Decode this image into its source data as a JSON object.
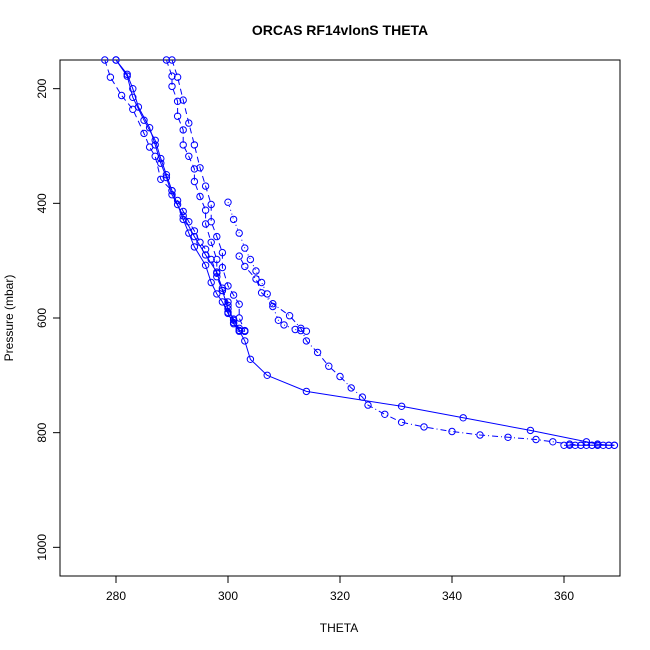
{
  "chart_data": {
    "type": "line",
    "title": "ORCAS RF14vlonS THETA",
    "xlabel": "THETA",
    "ylabel": "Pressure (mbar)",
    "xlim": [
      270,
      370
    ],
    "ylim": [
      1050,
      150
    ],
    "y_reversed": true,
    "grid": false,
    "legend": "none",
    "marker": "open-circle",
    "color": "#0000FF",
    "xticks": [
      280,
      300,
      320,
      340,
      360
    ],
    "yticks": [
      200,
      400,
      600,
      800,
      1000
    ],
    "series": [
      {
        "line_style": "dashed",
        "points": [
          [
            278,
            150
          ],
          [
            279,
            180
          ],
          [
            281,
            212
          ],
          [
            283,
            236
          ],
          [
            285,
            278
          ],
          [
            286,
            302
          ],
          [
            287,
            318
          ],
          [
            288,
            358
          ],
          [
            290,
            378
          ],
          [
            291,
            395
          ],
          [
            292,
            414
          ],
          [
            293,
            432
          ],
          [
            294,
            448
          ],
          [
            295,
            468
          ],
          [
            296,
            480
          ],
          [
            297,
            498
          ],
          [
            298,
            522
          ],
          [
            299,
            548
          ],
          [
            300,
            578
          ],
          [
            301,
            608
          ],
          [
            302,
            622
          ],
          [
            303,
            623
          ]
        ]
      },
      {
        "line_style": "solid",
        "points": [
          [
            280,
            150
          ],
          [
            282,
            175
          ],
          [
            283,
            200
          ],
          [
            284,
            232
          ],
          [
            286,
            268
          ],
          [
            287,
            298
          ],
          [
            288,
            330
          ],
          [
            289,
            355
          ],
          [
            290,
            385
          ],
          [
            292,
            422
          ],
          [
            294,
            458
          ],
          [
            296,
            490
          ],
          [
            298,
            520
          ],
          [
            299,
            552
          ],
          [
            300,
            584
          ],
          [
            301,
            602
          ],
          [
            302,
            622
          ],
          [
            303,
            623
          ]
        ]
      },
      {
        "line_style": "solid",
        "points": [
          [
            280,
            150
          ],
          [
            282,
            178
          ],
          [
            283,
            215
          ],
          [
            285,
            255
          ],
          [
            287,
            290
          ],
          [
            288,
            322
          ],
          [
            289,
            350
          ],
          [
            290,
            378
          ],
          [
            291,
            402
          ],
          [
            292,
            428
          ],
          [
            293,
            452
          ],
          [
            294,
            476
          ],
          [
            296,
            508
          ],
          [
            297,
            538
          ],
          [
            298,
            558
          ],
          [
            299,
            572
          ],
          [
            300,
            592
          ],
          [
            301,
            610
          ],
          [
            302,
            622
          ],
          [
            303,
            623
          ]
        ]
      },
      {
        "line_style": "dashed",
        "points": [
          [
            289,
            150
          ],
          [
            290,
            178
          ],
          [
            290,
            196
          ],
          [
            291,
            222
          ],
          [
            291,
            248
          ],
          [
            292,
            272
          ],
          [
            292,
            298
          ],
          [
            293,
            318
          ],
          [
            294,
            340
          ],
          [
            294,
            362
          ],
          [
            295,
            388
          ],
          [
            296,
            412
          ],
          [
            296,
            436
          ],
          [
            297,
            468
          ],
          [
            298,
            498
          ],
          [
            298,
            528
          ],
          [
            299,
            552
          ],
          [
            300,
            572
          ],
          [
            300,
            590
          ],
          [
            301,
            604
          ],
          [
            302,
            618
          ],
          [
            302,
            623
          ]
        ]
      },
      {
        "line_style": "dashed",
        "points": [
          [
            290,
            150
          ],
          [
            291,
            180
          ],
          [
            292,
            220
          ],
          [
            293,
            260
          ],
          [
            294,
            298
          ],
          [
            295,
            338
          ],
          [
            296,
            370
          ],
          [
            297,
            402
          ],
          [
            297,
            432
          ],
          [
            298,
            458
          ],
          [
            299,
            486
          ],
          [
            299,
            512
          ],
          [
            300,
            544
          ],
          [
            301,
            560
          ],
          [
            302,
            576
          ],
          [
            302,
            600
          ],
          [
            303,
            622
          ]
        ]
      },
      {
        "line_style": "dotted",
        "points": [
          [
            300,
            398
          ],
          [
            301,
            428
          ],
          [
            302,
            452
          ],
          [
            303,
            478
          ],
          [
            304,
            498
          ],
          [
            305,
            518
          ],
          [
            306,
            538
          ],
          [
            307,
            558
          ],
          [
            308,
            580
          ],
          [
            309,
            604
          ],
          [
            310,
            612
          ],
          [
            312,
            620
          ],
          [
            313,
            622
          ],
          [
            314,
            623
          ]
        ]
      },
      {
        "line_style": "dashdot",
        "points": [
          [
            302,
            492
          ],
          [
            303,
            510
          ],
          [
            305,
            532
          ],
          [
            306,
            556
          ],
          [
            308,
            575
          ],
          [
            311,
            596
          ],
          [
            313,
            618
          ],
          [
            314,
            640
          ],
          [
            316,
            660
          ],
          [
            318,
            684
          ],
          [
            320,
            702
          ],
          [
            322,
            722
          ],
          [
            324,
            738
          ],
          [
            325,
            752
          ],
          [
            328,
            768
          ],
          [
            331,
            782
          ],
          [
            335,
            790
          ],
          [
            340,
            798
          ],
          [
            345,
            804
          ],
          [
            350,
            808
          ],
          [
            355,
            812
          ],
          [
            358,
            816
          ],
          [
            361,
            820
          ],
          [
            363,
            822
          ],
          [
            365,
            822
          ],
          [
            366,
            822
          ]
        ]
      },
      {
        "line_style": "solid",
        "points": [
          [
            302,
            622
          ],
          [
            303,
            640
          ],
          [
            304,
            672
          ],
          [
            307,
            700
          ],
          [
            314,
            728
          ],
          [
            331,
            754
          ],
          [
            342,
            774
          ],
          [
            354,
            796
          ],
          [
            364,
            816
          ],
          [
            366,
            820
          ],
          [
            368,
            822
          ],
          [
            369,
            822
          ]
        ]
      },
      {
        "line_style": "solid",
        "points": [
          [
            360,
            822
          ],
          [
            361,
            822
          ],
          [
            362,
            822
          ],
          [
            363,
            822
          ],
          [
            364,
            822
          ],
          [
            365,
            822
          ],
          [
            366,
            822
          ],
          [
            367,
            822
          ],
          [
            368,
            822
          ],
          [
            369,
            822
          ]
        ]
      }
    ]
  }
}
